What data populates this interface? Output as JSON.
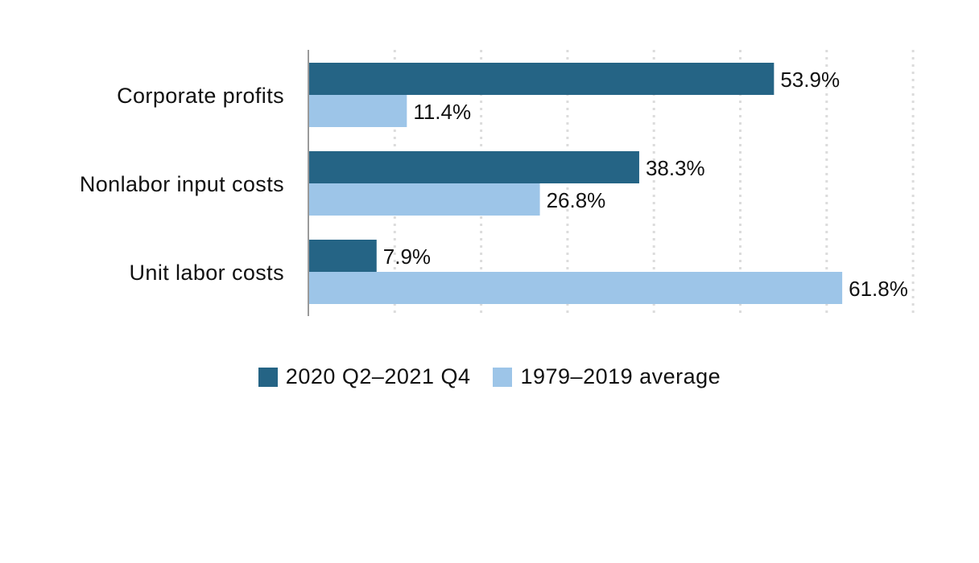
{
  "chart_data": {
    "type": "bar",
    "orientation": "horizontal",
    "categories": [
      "Corporate profits",
      "Nonlabor input costs",
      "Unit labor costs"
    ],
    "series": [
      {
        "name": "2020 Q2–2021 Q4",
        "values": [
          53.9,
          38.3,
          7.9
        ],
        "labels": [
          "53.9%",
          "38.3%",
          "7.9%"
        ],
        "color": "#256485"
      },
      {
        "name": "1979–2019 average",
        "values": [
          11.4,
          26.8,
          61.8
        ],
        "labels": [
          "11.4%",
          "26.8%",
          "61.8%"
        ],
        "color": "#9dc5e8"
      }
    ],
    "xlim": [
      0,
      70
    ],
    "grid": true,
    "legend_position": "bottom"
  }
}
